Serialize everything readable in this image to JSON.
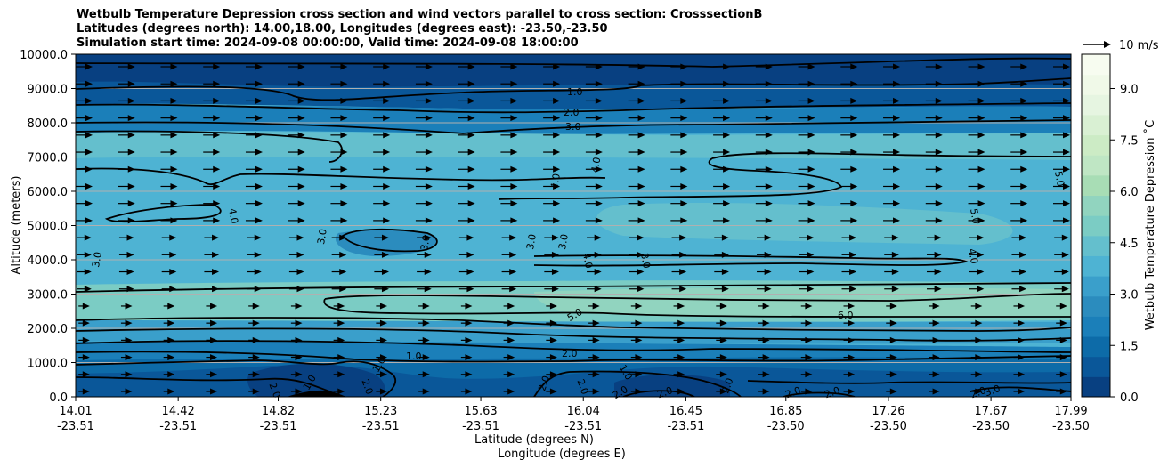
{
  "title_lines": [
    "Wetbulb Temperature Depression cross section and wind vectors parallel to cross section: CrosssectionB",
    "Latitudes (degrees north): 14.00,18.00, Longitudes (degrees east): -23.50,-23.50",
    "Simulation start time: 2024-09-08 00:00:00, Valid time: 2024-09-08 18:00:00"
  ],
  "chart_data": {
    "type": "heatmap",
    "xlabel_lines": [
      "Latitude (degrees N)",
      "Longitude (degrees E)"
    ],
    "ylabel": "Altitude (meters)",
    "ylim": [
      0,
      10000
    ],
    "y_ticks": [
      "0.0",
      "1000.0",
      "2000.0",
      "3000.0",
      "4000.0",
      "5000.0",
      "6000.0",
      "7000.0",
      "8000.0",
      "9000.0",
      "10000.0"
    ],
    "x_ticks": [
      {
        "lat": "14.01",
        "lon": "-23.51"
      },
      {
        "lat": "14.42",
        "lon": "-23.51"
      },
      {
        "lat": "14.82",
        "lon": "-23.51"
      },
      {
        "lat": "15.23",
        "lon": "-23.51"
      },
      {
        "lat": "15.63",
        "lon": "-23.51"
      },
      {
        "lat": "16.04",
        "lon": "-23.51"
      },
      {
        "lat": "16.45",
        "lon": "-23.51"
      },
      {
        "lat": "16.85",
        "lon": "-23.50"
      },
      {
        "lat": "17.26",
        "lon": "-23.50"
      },
      {
        "lat": "17.67",
        "lon": "-23.50"
      },
      {
        "lat": "17.99",
        "lon": "-23.50"
      }
    ],
    "horizontal_gridlines": true,
    "colorbar": {
      "label": "Wetbulb Temperature Depression ˚C",
      "range": [
        0,
        10
      ],
      "ticks": [
        "0.0",
        "1.5",
        "3.0",
        "4.5",
        "6.0",
        "7.5",
        "9.0"
      ],
      "colors": [
        "#084081",
        "#0a5799",
        "#0d6ba8",
        "#1b7fb9",
        "#2b8cbe",
        "#3a9fcb",
        "#4eb3d3",
        "#64bfcd",
        "#7bccc4",
        "#91d4bf",
        "#a8ddb5",
        "#bfe6c4",
        "#ccebc5",
        "#d9f0d3",
        "#e6f5e1",
        "#f0f9e8",
        "#f7fcf0"
      ]
    },
    "contour_levels": [
      1.0,
      2.0,
      3.0,
      4.0,
      5.0,
      6.0
    ],
    "contour_labels": [
      "1.0",
      "2.0",
      "3.0",
      "4.0",
      "5.0",
      "6.0",
      "3.0",
      "3.0",
      "3.0",
      "3.0",
      "3.0",
      "3.0",
      "4.0",
      "4.0",
      "4.0",
      "4.0",
      "5.0",
      "5.0",
      "1.0",
      "2.0",
      "2.0",
      "2.0",
      "2.0",
      "2.0",
      "2.0",
      "2.0",
      "2.0",
      "2.0",
      "2.0",
      "2.0",
      "1.0",
      "1.0",
      "1.0",
      "3.0"
    ],
    "wind_reference": "10 m/s",
    "wind_direction": "parallel, toward increasing latitude"
  }
}
